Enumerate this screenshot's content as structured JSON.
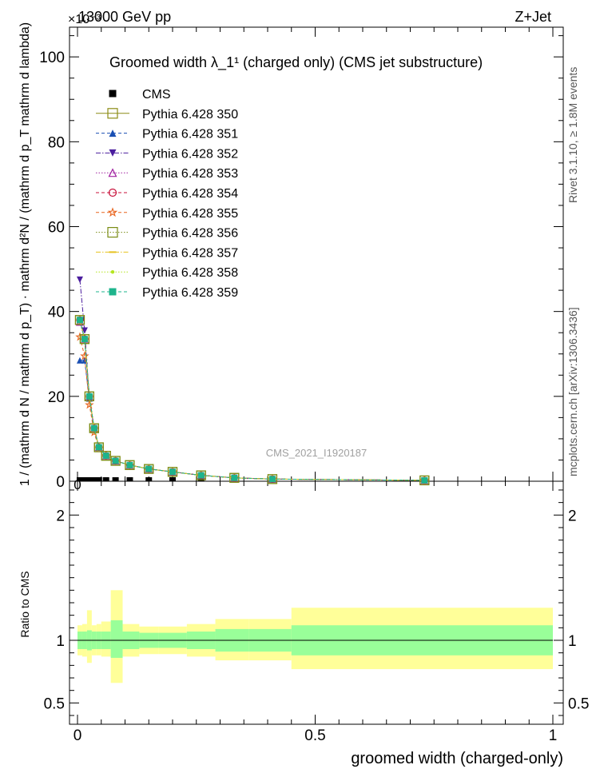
{
  "header": {
    "energy_label": "13000 GeV pp",
    "process_label": "Z+Jet",
    "exponent_label": "×10⁻³"
  },
  "side_labels": {
    "rivet": "Rivet 3.1.10, ≥ 1.8M events",
    "mcplots": "mcplots.cern.ch [arXiv:1306.3436]"
  },
  "watermark": "CMS_2021_I1920187",
  "chart_data": [
    {
      "type": "line",
      "panel": "main",
      "title": "Groomed width  λ_1¹ (charged only) (CMS jet substructure)",
      "ylabel_left": "1 / (mathrm d N / mathrm d p_T)  ·  mathrm d²N / (mathrm d p_T mathrm d lambda)",
      "xlim": [
        0,
        1
      ],
      "ylim": [
        0,
        107
      ],
      "y_ticks": [
        0,
        20,
        40,
        60,
        80,
        100
      ],
      "x": [
        0.005,
        0.015,
        0.025,
        0.035,
        0.045,
        0.06,
        0.08,
        0.11,
        0.15,
        0.2,
        0.26,
        0.33,
        0.41,
        0.73
      ],
      "series": [
        {
          "name": "CMS",
          "color": "#000000",
          "marker": "square",
          "style": "none",
          "values": [
            0.2,
            0.2,
            0.2,
            0.2,
            0.2,
            0.2,
            0.2,
            0.2,
            0.2,
            0.2,
            0.2,
            0.2,
            0.2,
            0.2
          ]
        },
        {
          "name": "Pythia 6.428 350",
          "color": "#8c8c14",
          "marker": "open-square",
          "style": "solid",
          "values": [
            38,
            33.5,
            20,
            12.5,
            8,
            6,
            4.8,
            3.8,
            2.9,
            2.2,
            1.4,
            0.8,
            0.5,
            0.2
          ]
        },
        {
          "name": "Pythia 6.428 351",
          "color": "#1a4fb3",
          "marker": "triangle-up",
          "style": "dashed",
          "values": [
            28.5,
            28.5,
            19.5,
            12.5,
            8,
            6,
            4.8,
            3.8,
            2.9,
            2.2,
            1.4,
            0.8,
            0.5,
            0.2
          ]
        },
        {
          "name": "Pythia 6.428 352",
          "color": "#4b1e9e",
          "marker": "triangle-down",
          "style": "dashdot",
          "values": [
            47.5,
            35.5,
            19.5,
            12.5,
            8,
            6,
            4.8,
            3.8,
            2.9,
            2.2,
            1.4,
            0.8,
            0.5,
            0.2
          ]
        },
        {
          "name": "Pythia 6.428 353",
          "color": "#a020a0",
          "marker": "open-triangle-up",
          "style": "dotted",
          "values": [
            37.5,
            33.5,
            20,
            12.5,
            8,
            6,
            4.8,
            3.8,
            2.9,
            2.2,
            1.4,
            0.8,
            0.5,
            0.2
          ]
        },
        {
          "name": "Pythia 6.428 354",
          "color": "#c8103a",
          "marker": "open-circle",
          "style": "dashed",
          "values": [
            38,
            33.5,
            20,
            12.5,
            8,
            6,
            4.8,
            3.8,
            2.9,
            2.2,
            1.4,
            0.8,
            0.5,
            0.2
          ]
        },
        {
          "name": "Pythia 6.428 355",
          "color": "#e8641e",
          "marker": "star",
          "style": "dashed",
          "values": [
            34,
            29.5,
            18,
            11.5,
            7.8,
            6,
            4.8,
            3.8,
            2.9,
            2.2,
            1.4,
            0.8,
            0.5,
            0.2
          ]
        },
        {
          "name": "Pythia 6.428 356",
          "color": "#7a8c14",
          "marker": "open-square",
          "style": "dotted",
          "values": [
            38,
            33.5,
            20,
            12.5,
            8,
            6,
            4.8,
            3.8,
            2.9,
            2.2,
            1.4,
            0.8,
            0.5,
            0.2
          ]
        },
        {
          "name": "Pythia 6.428 357",
          "color": "#e6c21e",
          "marker": "dash",
          "style": "dashdot",
          "values": [
            38,
            33.5,
            20,
            12.5,
            8,
            6,
            4.8,
            3.8,
            2.9,
            2.2,
            1.4,
            0.8,
            0.5,
            0.2
          ]
        },
        {
          "name": "Pythia 6.428 358",
          "color": "#b4e61e",
          "marker": "dot",
          "style": "dotted",
          "values": [
            38,
            33.5,
            20,
            12.5,
            8,
            6,
            4.8,
            3.8,
            2.9,
            2.2,
            1.4,
            0.8,
            0.5,
            0.2
          ]
        },
        {
          "name": "Pythia 6.428 359",
          "color": "#1eb48c",
          "marker": "filled-square",
          "style": "dashed",
          "values": [
            38,
            33.5,
            20,
            12.5,
            8,
            6,
            4.8,
            3.8,
            2.9,
            2.2,
            1.4,
            0.8,
            0.5,
            0.2
          ]
        }
      ]
    },
    {
      "type": "area",
      "panel": "ratio",
      "ylabel": "Ratio to CMS",
      "xlabel": "groomed width (charged-only)",
      "xlim": [
        0,
        1
      ],
      "ylim": [
        0.33,
        2.27
      ],
      "y_ticks": [
        0.5,
        1,
        2
      ],
      "x_ticks": [
        0,
        0.5,
        1
      ],
      "reference": 1,
      "bins": [
        {
          "x0": 0.0,
          "x1": 0.01,
          "stat_lo": 0.93,
          "stat_hi": 1.07,
          "tot_lo": 0.88,
          "tot_hi": 1.12
        },
        {
          "x0": 0.01,
          "x1": 0.02,
          "stat_lo": 0.93,
          "stat_hi": 1.07,
          "tot_lo": 0.87,
          "tot_hi": 1.13
        },
        {
          "x0": 0.02,
          "x1": 0.03,
          "stat_lo": 0.92,
          "stat_hi": 1.08,
          "tot_lo": 0.82,
          "tot_hi": 1.24
        },
        {
          "x0": 0.03,
          "x1": 0.04,
          "stat_lo": 0.93,
          "stat_hi": 1.07,
          "tot_lo": 0.88,
          "tot_hi": 1.12
        },
        {
          "x0": 0.04,
          "x1": 0.05,
          "stat_lo": 0.93,
          "stat_hi": 1.07,
          "tot_lo": 0.88,
          "tot_hi": 1.13
        },
        {
          "x0": 0.05,
          "x1": 0.07,
          "stat_lo": 0.93,
          "stat_hi": 1.07,
          "tot_lo": 0.87,
          "tot_hi": 1.15
        },
        {
          "x0": 0.07,
          "x1": 0.095,
          "stat_lo": 0.86,
          "stat_hi": 1.16,
          "tot_lo": 0.66,
          "tot_hi": 1.4
        },
        {
          "x0": 0.095,
          "x1": 0.13,
          "stat_lo": 0.93,
          "stat_hi": 1.07,
          "tot_lo": 0.87,
          "tot_hi": 1.13
        },
        {
          "x0": 0.13,
          "x1": 0.17,
          "stat_lo": 0.94,
          "stat_hi": 1.06,
          "tot_lo": 0.89,
          "tot_hi": 1.11
        },
        {
          "x0": 0.17,
          "x1": 0.23,
          "stat_lo": 0.94,
          "stat_hi": 1.06,
          "tot_lo": 0.89,
          "tot_hi": 1.11
        },
        {
          "x0": 0.23,
          "x1": 0.29,
          "stat_lo": 0.93,
          "stat_hi": 1.07,
          "tot_lo": 0.87,
          "tot_hi": 1.13
        },
        {
          "x0": 0.29,
          "x1": 0.36,
          "stat_lo": 0.91,
          "stat_hi": 1.09,
          "tot_lo": 0.84,
          "tot_hi": 1.17
        },
        {
          "x0": 0.36,
          "x1": 0.45,
          "stat_lo": 0.91,
          "stat_hi": 1.09,
          "tot_lo": 0.84,
          "tot_hi": 1.17
        },
        {
          "x0": 0.45,
          "x1": 1.0,
          "stat_lo": 0.88,
          "stat_hi": 1.12,
          "tot_lo": 0.77,
          "tot_hi": 1.26
        }
      ]
    }
  ]
}
